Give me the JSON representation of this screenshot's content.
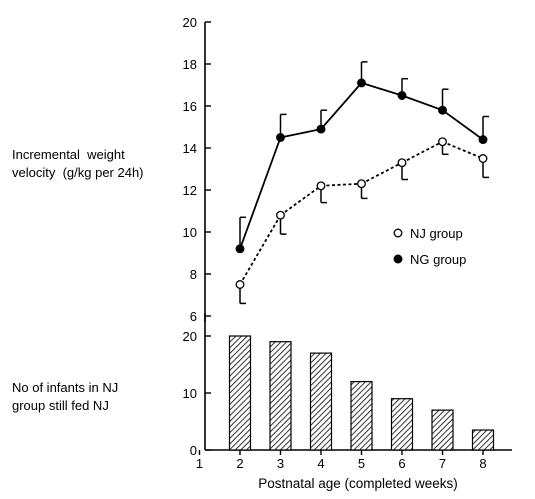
{
  "chart_data": [
    {
      "type": "line",
      "ylabel_line1": "Incremental  weight",
      "ylabel_line2": "velocity  (g/kg per 24h)",
      "ylim": [
        6,
        20
      ],
      "yticks": [
        6,
        8,
        10,
        12,
        14,
        16,
        18,
        20
      ],
      "grid": false,
      "legend_position": "lower-right",
      "series": [
        {
          "name": "NJ group",
          "marker": "open-circle",
          "line_style": "dashed",
          "x": [
            2,
            3,
            4,
            5,
            6,
            7,
            8
          ],
          "values": [
            7.5,
            10.8,
            12.2,
            12.3,
            13.3,
            14.3,
            13.5
          ],
          "error_bar_direction": "down",
          "error": [
            0.9,
            0.9,
            0.8,
            0.7,
            0.8,
            0.6,
            0.9
          ]
        },
        {
          "name": "NG group",
          "marker": "filled-circle",
          "line_style": "solid",
          "x": [
            2,
            3,
            4,
            5,
            6,
            7,
            8
          ],
          "values": [
            9.2,
            14.5,
            14.9,
            17.1,
            16.5,
            15.8,
            14.4
          ],
          "error_bar_direction": "up",
          "error": [
            1.5,
            1.1,
            0.9,
            1.0,
            0.8,
            1.0,
            1.1
          ]
        }
      ]
    },
    {
      "type": "bar",
      "ylabel_line1": "No of infants in NJ",
      "ylabel_line2": "group still fed NJ",
      "ylim": [
        0,
        24
      ],
      "yticks": [
        0,
        10,
        20
      ],
      "x": [
        2,
        3,
        4,
        5,
        6,
        7,
        8
      ],
      "values": [
        20,
        19,
        17,
        12,
        9,
        7,
        3.5
      ],
      "fill": "hatched",
      "xlabel": "Postnatal  age  (completed weeks)",
      "xticks": [
        1,
        2,
        3,
        4,
        5,
        6,
        7,
        8
      ],
      "xlim": [
        1,
        8.5
      ]
    }
  ]
}
